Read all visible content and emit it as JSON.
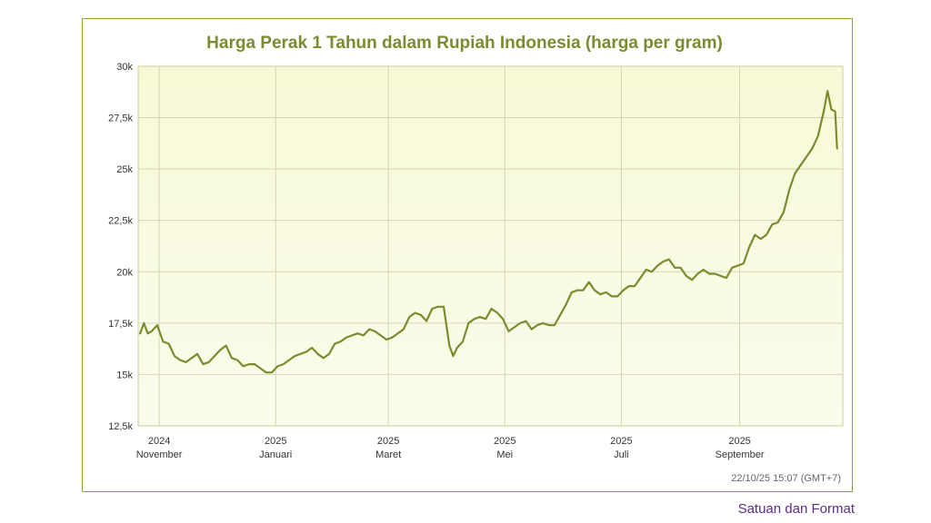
{
  "chart_data": {
    "type": "line",
    "title": "Harga Perak 1 Tahun dalam Rupiah Indonesia (harga per gram)",
    "xlabel": "",
    "ylabel": "",
    "ylim": [
      12500,
      30000
    ],
    "yticks": [
      12500,
      15000,
      17500,
      20000,
      22500,
      25000,
      27500,
      30000
    ],
    "ytick_labels": [
      "12,5k",
      "15k",
      "17,5k",
      "20k",
      "22,5k",
      "25k",
      "27,5k",
      "30k"
    ],
    "xlim": [
      "2023-10-22",
      "2025-10-22"
    ],
    "xticks": [
      {
        "date": "2024-11-01",
        "year": "2024",
        "month": "November"
      },
      {
        "date": "2025-01-01",
        "year": "2025",
        "month": "Januari"
      },
      {
        "date": "2025-03-01",
        "year": "2025",
        "month": "Maret"
      },
      {
        "date": "2025-05-01",
        "year": "2025",
        "month": "Mei"
      },
      {
        "date": "2025-07-01",
        "year": "2025",
        "month": "Juli"
      },
      {
        "date": "2025-09-01",
        "year": "2025",
        "month": "September"
      }
    ],
    "grid": true,
    "line_color": "#7a8c2e",
    "title_color": "#7a8c2e",
    "series": [
      {
        "name": "",
        "x": [
          "2024-10-22",
          "2024-10-24",
          "2024-10-26",
          "2024-10-28",
          "2024-10-31",
          "2024-11-03",
          "2024-11-06",
          "2024-11-09",
          "2024-11-12",
          "2024-11-15",
          "2024-11-18",
          "2024-11-21",
          "2024-11-24",
          "2024-11-27",
          "2024-11-30",
          "2024-12-03",
          "2024-12-06",
          "2024-12-09",
          "2024-12-12",
          "2024-12-15",
          "2024-12-18",
          "2024-12-21",
          "2024-12-24",
          "2024-12-27",
          "2024-12-30",
          "2025-01-02",
          "2025-01-05",
          "2025-01-08",
          "2025-01-11",
          "2025-01-14",
          "2025-01-17",
          "2025-01-20",
          "2025-01-23",
          "2025-01-26",
          "2025-01-29",
          "2025-02-01",
          "2025-02-04",
          "2025-02-07",
          "2025-02-10",
          "2025-02-13",
          "2025-02-16",
          "2025-02-19",
          "2025-02-22",
          "2025-02-25",
          "2025-02-28",
          "2025-03-03",
          "2025-03-06",
          "2025-03-09",
          "2025-03-12",
          "2025-03-15",
          "2025-03-18",
          "2025-03-21",
          "2025-03-24",
          "2025-03-27",
          "2025-03-30",
          "2025-04-02",
          "2025-04-04",
          "2025-04-06",
          "2025-04-09",
          "2025-04-12",
          "2025-04-15",
          "2025-04-18",
          "2025-04-21",
          "2025-04-24",
          "2025-04-27",
          "2025-04-30",
          "2025-05-03",
          "2025-05-06",
          "2025-05-09",
          "2025-05-12",
          "2025-05-15",
          "2025-05-18",
          "2025-05-21",
          "2025-05-24",
          "2025-05-27",
          "2025-05-30",
          "2025-06-02",
          "2025-06-05",
          "2025-06-08",
          "2025-06-11",
          "2025-06-14",
          "2025-06-17",
          "2025-06-20",
          "2025-06-23",
          "2025-06-26",
          "2025-06-29",
          "2025-07-02",
          "2025-07-05",
          "2025-07-08",
          "2025-07-11",
          "2025-07-14",
          "2025-07-17",
          "2025-07-20",
          "2025-07-23",
          "2025-07-26",
          "2025-07-29",
          "2025-08-01",
          "2025-08-04",
          "2025-08-07",
          "2025-08-10",
          "2025-08-13",
          "2025-08-16",
          "2025-08-19",
          "2025-08-22",
          "2025-08-25",
          "2025-08-28",
          "2025-08-31",
          "2025-09-03",
          "2025-09-06",
          "2025-09-09",
          "2025-09-12",
          "2025-09-15",
          "2025-09-18",
          "2025-09-21",
          "2025-09-24",
          "2025-09-27",
          "2025-09-30",
          "2025-10-03",
          "2025-10-06",
          "2025-10-09",
          "2025-10-12",
          "2025-10-15",
          "2025-10-17",
          "2025-10-19",
          "2025-10-21",
          "2025-10-22"
        ],
        "values": [
          17000,
          17500,
          17000,
          17100,
          17400,
          16600,
          16500,
          15900,
          15700,
          15600,
          15800,
          16000,
          15500,
          15600,
          15900,
          16200,
          16400,
          15800,
          15700,
          15400,
          15500,
          15500,
          15300,
          15100,
          15100,
          15400,
          15500,
          15700,
          15900,
          16000,
          16100,
          16300,
          16000,
          15800,
          16000,
          16500,
          16600,
          16800,
          16900,
          17000,
          16900,
          17200,
          17100,
          16900,
          16700,
          16800,
          17000,
          17200,
          17800,
          18000,
          17900,
          17600,
          18200,
          18300,
          18300,
          16400,
          15900,
          16300,
          16600,
          17500,
          17700,
          17800,
          17700,
          18200,
          18000,
          17700,
          17100,
          17300,
          17500,
          17600,
          17200,
          17400,
          17500,
          17400,
          17400,
          17900,
          18400,
          19000,
          19100,
          19100,
          19500,
          19100,
          18900,
          19000,
          18800,
          18800,
          19100,
          19300,
          19300,
          19700,
          20100,
          20000,
          20300,
          20500,
          20600,
          20200,
          20200,
          19800,
          19600,
          19900,
          20100,
          19900,
          19900,
          19800,
          19700,
          20200,
          20300,
          20400,
          21200,
          21800,
          21600,
          21800,
          22300,
          22400,
          22900,
          24000,
          24800,
          25200,
          25600,
          26000,
          26600,
          27800,
          28800,
          27900,
          27800,
          26000
        ]
      }
    ],
    "timestamp": "22/10/25 15:07 (GMT+7)"
  },
  "footer": {
    "link_label": "Satuan dan Format"
  }
}
